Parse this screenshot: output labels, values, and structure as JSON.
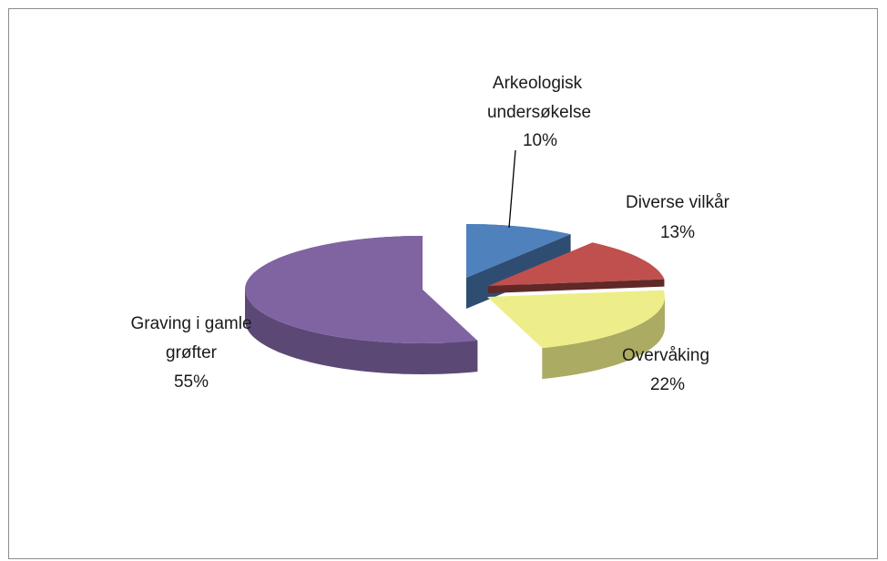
{
  "chart_data": {
    "type": "pie",
    "style": "3d-exploded",
    "title": "",
    "categories": [
      "Arkeologisk undersøkelse",
      "Diverse vilkår",
      "Overvåking",
      "Graving i gamle grøfter"
    ],
    "values": [
      10,
      13,
      22,
      55
    ],
    "labels": [
      {
        "name": "Arkeologisk",
        "name2": "undersøkelse",
        "pct": "10%"
      },
      {
        "name": "Diverse vilkår",
        "pct": "13%"
      },
      {
        "name": "Overvåking",
        "pct": "22%"
      },
      {
        "name": "Graving i gamle",
        "name2": "grøfter",
        "pct": "55%"
      }
    ],
    "colors": [
      "#4f81bd",
      "#c0504d",
      "#eded8a",
      "#8064a2"
    ],
    "legend": "none"
  }
}
